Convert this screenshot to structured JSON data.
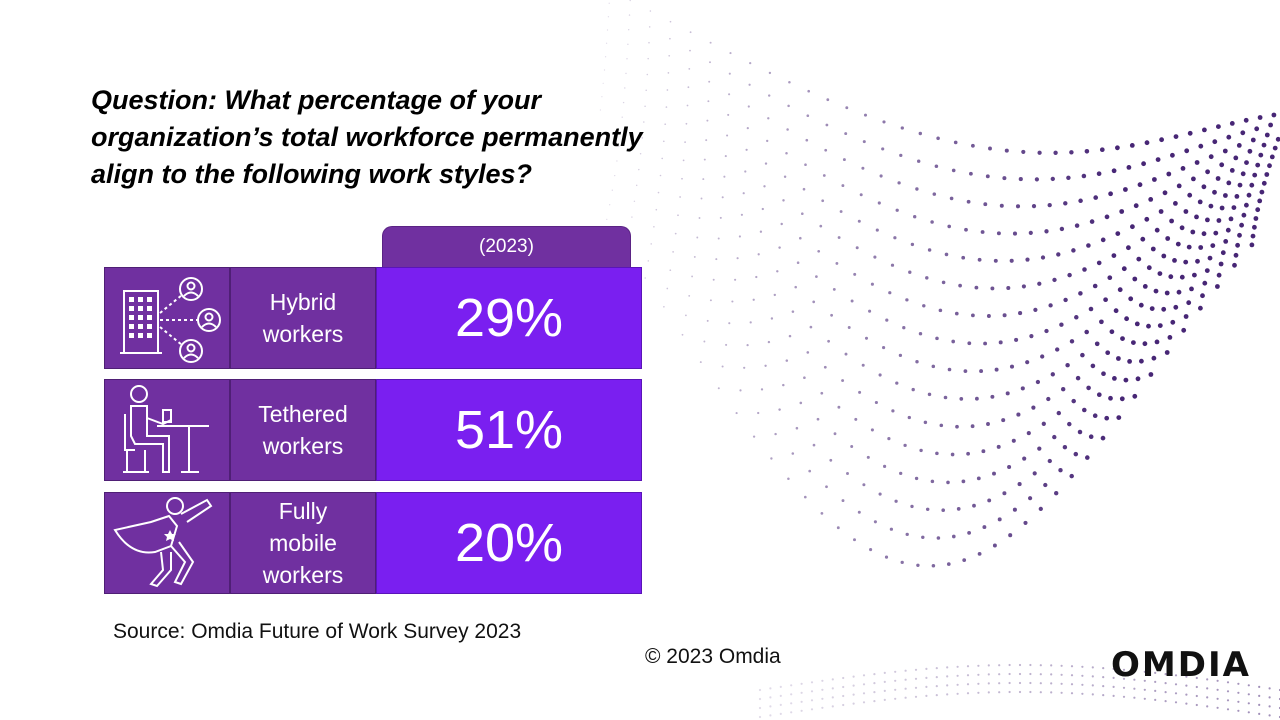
{
  "question": {
    "lines": [
      "Question: What percentage of your",
      "organization’s total workforce permanently",
      "align to the following work styles?"
    ]
  },
  "chart_data": {
    "type": "table",
    "column_header": "(2023)",
    "rows": [
      {
        "label_lines": [
          "Hybrid",
          "workers"
        ],
        "value": 29,
        "value_label": "29%",
        "icon": "hybrid-worker-icon"
      },
      {
        "label_lines": [
          "Tethered",
          "workers"
        ],
        "value": 51,
        "value_label": "51%",
        "icon": "desk-worker-icon"
      },
      {
        "label_lines": [
          "Fully",
          "mobile",
          "workers"
        ],
        "value": 20,
        "value_label": "20%",
        "icon": "superhero-icon"
      }
    ]
  },
  "footer": {
    "source": "Source: Omdia Future of Work Survey 2023",
    "copyright": "© 2023 Omdia",
    "logo_text": "OMDIA"
  },
  "colors": {
    "header_purple": "#7030a0",
    "value_purple": "#7a1ff0",
    "dot_purple": "#3d1a6e"
  }
}
